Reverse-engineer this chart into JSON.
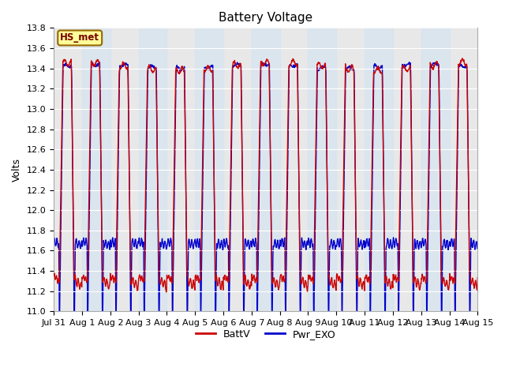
{
  "title": "Battery Voltage",
  "ylabel": "Volts",
  "ylim": [
    11.0,
    13.8
  ],
  "yticks": [
    11.0,
    11.2,
    11.4,
    11.6,
    11.8,
    12.0,
    12.2,
    12.4,
    12.6,
    12.8,
    13.0,
    13.2,
    13.4,
    13.6,
    13.8
  ],
  "xtick_labels": [
    "Jul 31",
    "Aug 1",
    "Aug 2",
    "Aug 3",
    "Aug 4",
    "Aug 5",
    "Aug 6",
    "Aug 7",
    "Aug 8",
    "Aug 9",
    "Aug 10",
    "Aug 11",
    "Aug 12",
    "Aug 13",
    "Aug 14",
    "Aug 15"
  ],
  "line1_color": "#cc0000",
  "line2_color": "#0000cc",
  "annotation_text": "HS_met",
  "annotation_bg": "#ffff99",
  "annotation_border": "#996600",
  "legend_labels": [
    "BattV",
    "Pwr_EXO"
  ],
  "plot_bg": "#e8e8e8",
  "fig_bg": "#ffffff",
  "num_days": 15,
  "points_per_day": 96,
  "band_color": "#d0e4f5",
  "band_alpha": 0.5,
  "line_width": 1.0,
  "grid_color": "#ffffff",
  "title_fontsize": 11,
  "ylabel_fontsize": 9,
  "tick_fontsize": 8,
  "legend_fontsize": 9
}
